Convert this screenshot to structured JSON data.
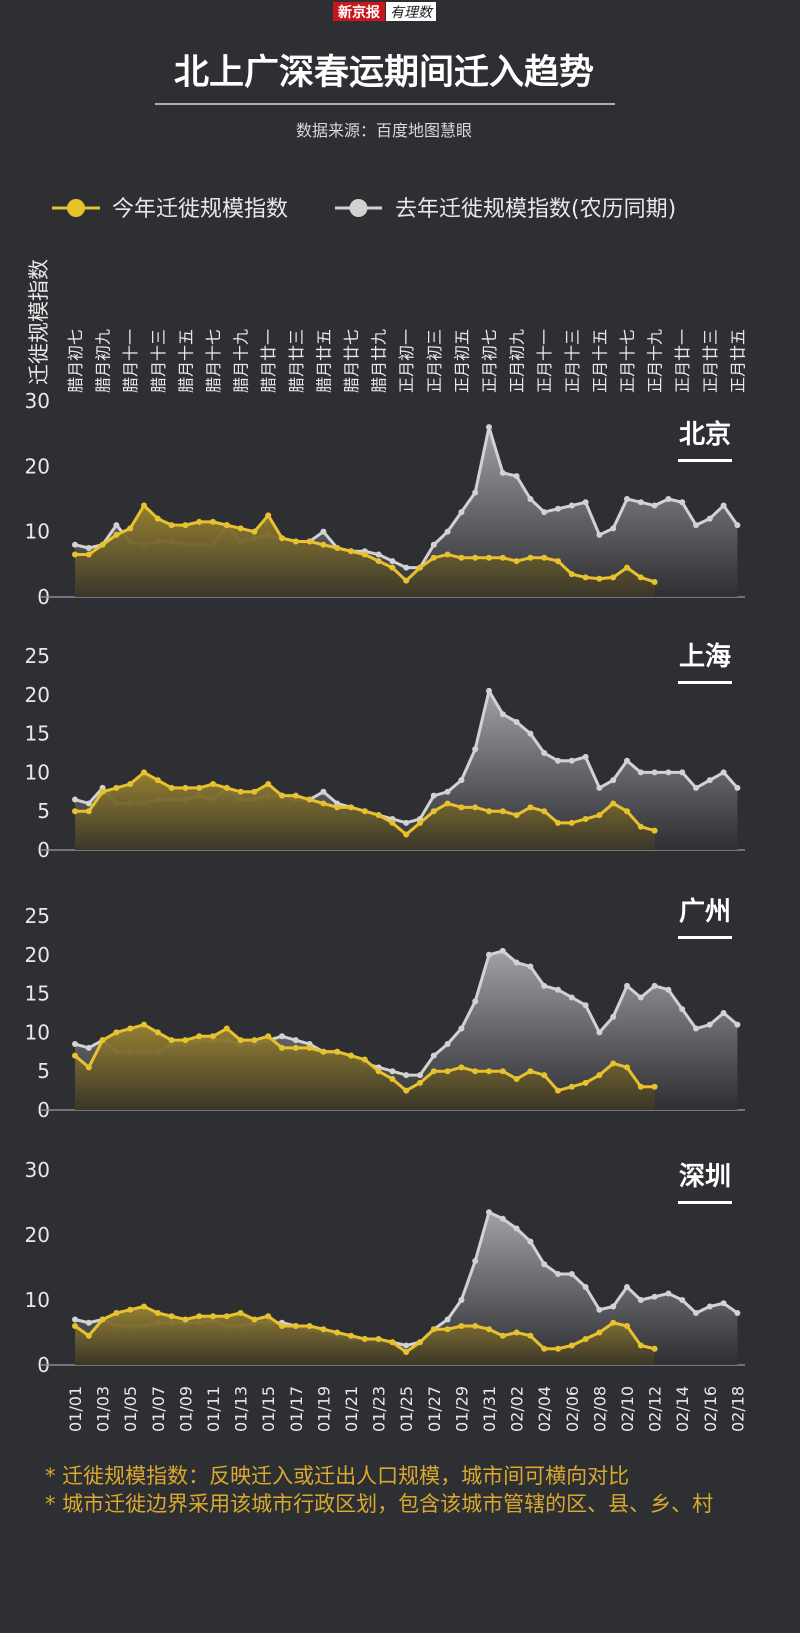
{
  "header": {
    "logo": "新京报",
    "logo_sub": "有理数"
  },
  "title": "北上广深春运期间迁入趋势",
  "source": "数据来源：百度地图慧眼",
  "y_axis_label": "迁徙规模指数",
  "legend": [
    {
      "name": "今年迁徙规模指数",
      "color": "#e8c22e"
    },
    {
      "name": "去年迁徙规模指数(农历同期)",
      "color": "#d2d2d2"
    }
  ],
  "x_axis": {
    "lunar_categories": [
      "腊月初七",
      null,
      "腊月初九",
      null,
      "腊月十一",
      null,
      "腊月十三",
      null,
      "腊月十五",
      null,
      "腊月十七",
      null,
      "腊月十九",
      null,
      "腊月廿一",
      null,
      "腊月廿三",
      null,
      "腊月廿五",
      null,
      "腊月廿七",
      null,
      "腊月廿九",
      null,
      "正月初一",
      null,
      "正月初三",
      null,
      "正月初五",
      null,
      "正月初七",
      null,
      "正月初九",
      null,
      "正月十一",
      null,
      "正月十三",
      null,
      "正月十五",
      null,
      "正月十七",
      null,
      "正月十九",
      null,
      "正月廿一",
      null,
      "正月廿三",
      null,
      "正月廿五"
    ],
    "categories": [
      "01/01",
      null,
      "01/03",
      null,
      "01/05",
      null,
      "01/07",
      null,
      "01/09",
      null,
      "01/11",
      null,
      "01/13",
      null,
      "01/15",
      null,
      "01/17",
      null,
      "01/19",
      null,
      "01/21",
      null,
      "01/23",
      null,
      "01/25",
      null,
      "01/27",
      null,
      "01/29",
      null,
      "01/31",
      null,
      "02/02",
      null,
      "02/04",
      null,
      "02/06",
      null,
      "02/08",
      null,
      "02/10",
      null,
      "02/12",
      null,
      "02/14",
      null,
      "02/16",
      null,
      "02/18"
    ]
  },
  "chart_data": [
    {
      "type": "line",
      "title": "北京",
      "ylim": [
        0,
        30
      ],
      "yticks": [
        0,
        10,
        20,
        30
      ],
      "series": [
        {
          "values": [
            6.5,
            6.5,
            8,
            9.5,
            10.5,
            14,
            12,
            11,
            11,
            11.5,
            11.5,
            11,
            10.5,
            10,
            12.5,
            9,
            8.5,
            8.5,
            8,
            7.5,
            7,
            6.5,
            5.5,
            4.5,
            2.5,
            4.5,
            6,
            6.5,
            6,
            6,
            6,
            6,
            5.5,
            6,
            6,
            5.5,
            3.5,
            3,
            2.8,
            3,
            4.5,
            3,
            2.3,
            null,
            null,
            null,
            null,
            null,
            null
          ]
        },
        {
          "values": [
            8,
            7.5,
            8,
            11,
            8.5,
            8,
            8.5,
            8.5,
            8,
            8,
            8,
            11,
            8.5,
            9,
            9.5,
            9,
            8.5,
            8.5,
            10,
            7.5,
            7,
            7,
            6.5,
            5.5,
            4.5,
            4.5,
            8,
            10,
            13,
            16,
            26,
            19,
            18.5,
            15,
            13,
            13.5,
            14,
            14.5,
            9.5,
            10.5,
            15,
            14.5,
            14,
            15,
            14.5,
            11,
            12,
            14,
            11
          ]
        }
      ]
    },
    {
      "type": "line",
      "title": "上海",
      "ylim": [
        0,
        25
      ],
      "yticks": [
        0,
        5,
        10,
        15,
        20,
        25
      ],
      "series": [
        {
          "values": [
            5,
            5,
            7.5,
            8,
            8.5,
            10,
            9,
            8,
            8,
            8,
            8.5,
            8,
            7.5,
            7.5,
            8.5,
            7,
            7,
            6.5,
            6,
            5.5,
            5.5,
            5,
            4.5,
            3.5,
            2,
            3.5,
            5,
            6,
            5.5,
            5.5,
            5,
            5,
            4.5,
            5.5,
            5,
            3.5,
            3.5,
            4,
            4.5,
            6,
            5,
            3,
            2.5,
            null,
            null,
            null,
            null,
            null,
            null
          ]
        },
        {
          "values": [
            6.5,
            6,
            8,
            6,
            6,
            6,
            6.5,
            6.5,
            6.5,
            7,
            6.5,
            8,
            6.5,
            6.5,
            7,
            7,
            6.5,
            6.5,
            7.5,
            6,
            5.5,
            5,
            4.5,
            4,
            3.5,
            4,
            7,
            7.5,
            9,
            13,
            20.5,
            17.5,
            16.5,
            15,
            12.5,
            11.5,
            11.5,
            12,
            8,
            9,
            11.5,
            10,
            10,
            10,
            10,
            8,
            9,
            10,
            8
          ]
        }
      ]
    },
    {
      "type": "line",
      "title": "广州",
      "ylim": [
        0,
        25
      ],
      "yticks": [
        0,
        5,
        10,
        15,
        20,
        25
      ],
      "series": [
        {
          "values": [
            7,
            5.5,
            9,
            10,
            10.5,
            11,
            10,
            9,
            9,
            9.5,
            9.5,
            10.5,
            9,
            9,
            9.5,
            8,
            8,
            8,
            7.5,
            7.5,
            7,
            6.5,
            5,
            4,
            2.5,
            3.5,
            5,
            5,
            5.5,
            5,
            5,
            5,
            4,
            5,
            4.5,
            2.5,
            3,
            3.5,
            4.5,
            6,
            5.5,
            3,
            3,
            null,
            null,
            null,
            null,
            null,
            null
          ]
        },
        {
          "values": [
            8.5,
            8,
            9,
            7.5,
            7.5,
            7.5,
            7.5,
            8.5,
            8.5,
            9,
            9,
            9,
            8.5,
            8.5,
            9,
            9.5,
            9,
            8.5,
            7.5,
            7.5,
            7,
            6,
            5.5,
            5,
            4.5,
            4.5,
            7,
            8.5,
            10.5,
            14,
            20,
            20.5,
            19,
            18.5,
            16,
            15.5,
            14.5,
            13.5,
            10,
            12,
            16,
            14.5,
            16,
            15.5,
            13,
            10.5,
            11,
            12.5,
            11
          ]
        }
      ]
    },
    {
      "type": "line",
      "title": "深圳",
      "ylim": [
        0,
        30
      ],
      "yticks": [
        0,
        10,
        20,
        30
      ],
      "series": [
        {
          "values": [
            6,
            4.5,
            7,
            8,
            8.5,
            9,
            8,
            7.5,
            7,
            7.5,
            7.5,
            7.5,
            8,
            7,
            7.5,
            6,
            6,
            6,
            5.5,
            5,
            4.5,
            4,
            4,
            3.5,
            2,
            3.5,
            5.5,
            5.5,
            6,
            6,
            5.5,
            4.5,
            5,
            4.5,
            2.5,
            2.5,
            3,
            4,
            5,
            6.5,
            6,
            3,
            2.5,
            null,
            null,
            null,
            null,
            null,
            null
          ]
        },
        {
          "values": [
            7,
            6.5,
            7,
            6,
            6,
            6,
            6.5,
            6.5,
            6.5,
            6.5,
            7,
            6,
            6,
            6.5,
            6.5,
            6.5,
            6,
            5.5,
            5,
            4.5,
            4,
            4,
            3.5,
            3.5,
            3,
            3.5,
            5.5,
            7,
            10,
            16,
            23.5,
            22.5,
            21,
            19,
            15.5,
            14,
            14,
            12,
            8.5,
            9,
            12,
            10,
            10.5,
            11,
            10,
            8,
            9,
            9.5,
            8
          ]
        }
      ]
    }
  ],
  "notes": [
    "* 迁徙规模指数：反映迁入或迁出人口规模，城市间可横向对比",
    "* 城市迁徙边界采用该城市行政区划，包含该城市管辖的区、县、乡、村"
  ]
}
